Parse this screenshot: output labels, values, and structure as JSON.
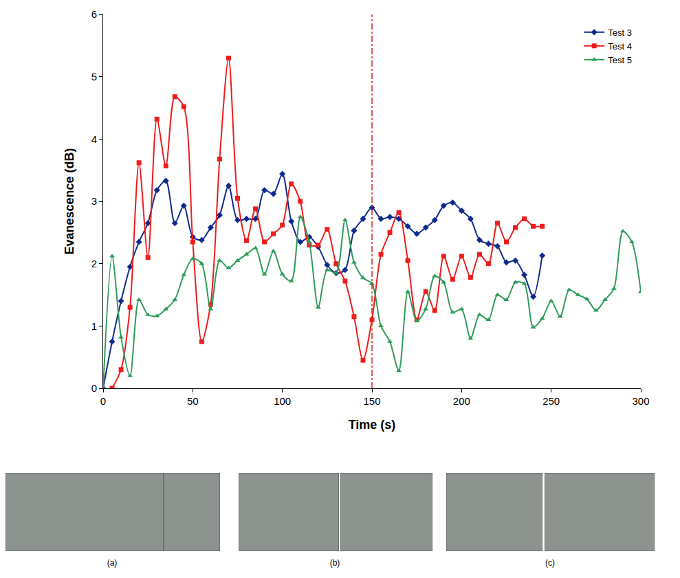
{
  "chart_data": {
    "type": "line",
    "x_label": "Time (s)",
    "y_label": "Evanescence (dB)",
    "xlim": [
      0,
      300
    ],
    "xticks": [
      0,
      50,
      100,
      150,
      200,
      250,
      300
    ],
    "ylim": [
      0,
      6
    ],
    "yticks": [
      0,
      1,
      2,
      3,
      4,
      5,
      6
    ],
    "grid": false,
    "legend": "upper right",
    "reference_line": {
      "x": 150,
      "color": "#e0201b",
      "line_style": "dashdot"
    },
    "series": [
      {
        "name": "Test 3",
        "color": "#0e2a8c",
        "marker": "diamond",
        "line_style": "spline",
        "x": [
          0,
          5,
          10,
          15,
          20,
          25,
          30,
          35,
          40,
          45,
          50,
          55,
          60,
          65,
          70,
          75,
          80,
          85,
          90,
          95,
          100,
          105,
          110,
          115,
          120,
          125,
          130,
          135,
          140,
          145,
          150,
          155,
          160,
          165,
          170,
          175,
          180,
          185,
          190,
          195,
          200,
          205,
          210,
          215,
          220,
          225,
          230,
          235,
          240,
          245
        ],
        "values": [
          0,
          0.75,
          1.4,
          1.95,
          2.35,
          2.65,
          3.18,
          3.33,
          2.65,
          2.93,
          2.43,
          2.38,
          2.58,
          2.78,
          3.25,
          2.7,
          2.72,
          2.72,
          3.18,
          3.12,
          3.44,
          2.68,
          2.35,
          2.43,
          2.27,
          1.98,
          1.85,
          1.9,
          2.53,
          2.72,
          2.9,
          2.72,
          2.75,
          2.72,
          2.6,
          2.48,
          2.58,
          2.7,
          2.93,
          2.98,
          2.85,
          2.72,
          2.38,
          2.32,
          2.28,
          2.02,
          2.05,
          1.82,
          1.47,
          2.13
        ]
      },
      {
        "name": "Test 4",
        "color": "#ee1c1c",
        "marker": "square",
        "line_style": "spline",
        "x": [
          5,
          10,
          15,
          20,
          25,
          30,
          35,
          40,
          45,
          50,
          55,
          60,
          65,
          70,
          75,
          80,
          85,
          90,
          95,
          100,
          105,
          110,
          115,
          120,
          125,
          130,
          135,
          140,
          145,
          150,
          155,
          160,
          165,
          170,
          175,
          180,
          185,
          190,
          195,
          200,
          205,
          210,
          215,
          220,
          225,
          230,
          235,
          240,
          245
        ],
        "values": [
          0,
          0.3,
          1.3,
          3.62,
          2.1,
          4.32,
          3.57,
          4.68,
          4.52,
          2.35,
          0.75,
          1.35,
          3.68,
          5.3,
          3.05,
          2.37,
          2.88,
          2.35,
          2.48,
          2.62,
          3.28,
          3.0,
          2.3,
          2.3,
          2.55,
          2.0,
          1.72,
          1.15,
          0.45,
          1.1,
          2.15,
          2.5,
          2.82,
          2.05,
          1.1,
          1.55,
          1.25,
          2.12,
          1.75,
          2.12,
          1.78,
          2.15,
          2.0,
          2.65,
          2.35,
          2.58,
          2.72,
          2.6,
          2.6
        ]
      },
      {
        "name": "Test 5",
        "color": "#2e9c5a",
        "marker": "triangle-up",
        "line_style": "spline",
        "x": [
          0,
          5,
          10,
          15,
          20,
          25,
          30,
          35,
          40,
          45,
          50,
          55,
          60,
          65,
          70,
          75,
          80,
          85,
          90,
          95,
          100,
          105,
          110,
          115,
          120,
          125,
          130,
          135,
          140,
          145,
          150,
          155,
          160,
          165,
          170,
          175,
          180,
          185,
          190,
          195,
          200,
          205,
          210,
          215,
          220,
          225,
          230,
          235,
          240,
          245,
          250,
          255,
          260,
          265,
          270,
          275,
          280,
          285,
          290,
          295,
          300
        ],
        "values": [
          0,
          2.12,
          0.82,
          0.2,
          1.42,
          1.18,
          1.16,
          1.27,
          1.42,
          1.82,
          2.08,
          2.0,
          1.27,
          2.05,
          1.93,
          2.05,
          2.15,
          2.25,
          1.83,
          2.2,
          1.83,
          1.72,
          2.75,
          2.35,
          1.3,
          1.9,
          1.85,
          2.7,
          2.02,
          1.77,
          1.68,
          1.0,
          0.75,
          0.28,
          1.55,
          1.08,
          1.27,
          1.8,
          1.7,
          1.22,
          1.27,
          0.8,
          1.18,
          1.1,
          1.5,
          1.42,
          1.7,
          1.68,
          0.98,
          1.12,
          1.4,
          1.15,
          1.58,
          1.5,
          1.43,
          1.25,
          1.42,
          1.6,
          2.52,
          2.35,
          1.55
        ]
      }
    ]
  },
  "panel_labels": [
    "(a)",
    "(b)",
    "(c)"
  ]
}
